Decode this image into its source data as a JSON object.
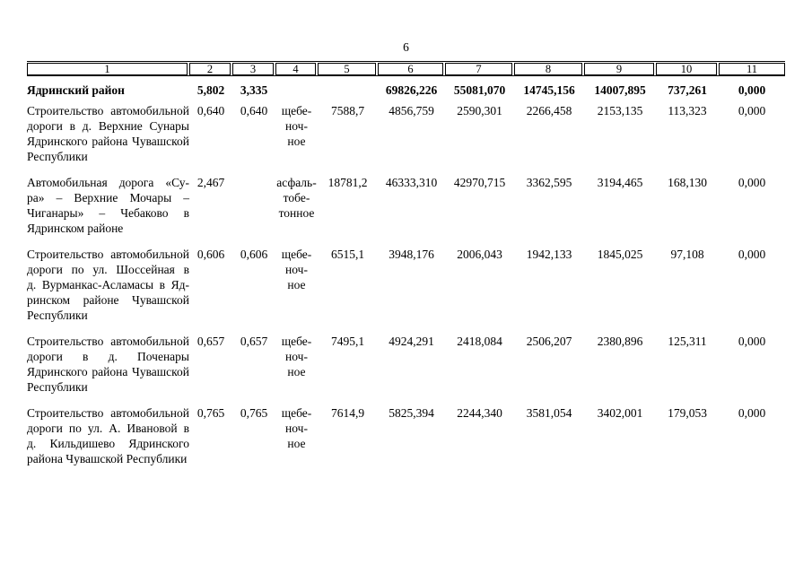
{
  "page_number": "6",
  "table": {
    "column_numbers": [
      "1",
      "2",
      "3",
      "4",
      "5",
      "6",
      "7",
      "8",
      "9",
      "10",
      "11"
    ],
    "total_row": {
      "title": "Ядринский район",
      "c2": "5,802",
      "c3": "3,335",
      "c4": "",
      "c5": "",
      "c6": "69826,226",
      "c7": "55081,070",
      "c8": "14745,156",
      "c9": "14007,895",
      "c10": "737,261",
      "c11": "0,000"
    },
    "rows": [
      {
        "desc": [
          "Строительство автомобильной",
          "дороги в д. Верхние Сунары",
          "Ядринского района Чувашской",
          "Республики"
        ],
        "c2": "0,640",
        "c3": "0,640",
        "c4": [
          "щебе-",
          "ноч-",
          "ное"
        ],
        "c5": "7588,7",
        "c6": "4856,759",
        "c7": "2590,301",
        "c8": "2266,458",
        "c9": "2153,135",
        "c10": "113,323",
        "c11": "0,000"
      },
      {
        "desc": [
          "Автомобильная дорога «Су-",
          "ра» – Верхние Мочары –",
          "Чиганары» – Чебаково в",
          "Ядринском районе"
        ],
        "c2": "2,467",
        "c3": "",
        "c4": [
          "асфаль-",
          "тобе-",
          "тонное"
        ],
        "c5": "18781,2",
        "c6": "46333,310",
        "c7": "42970,715",
        "c8": "3362,595",
        "c9": "3194,465",
        "c10": "168,130",
        "c11": "0,000"
      },
      {
        "desc": [
          "Строительство автомобильной",
          "дороги по ул. Шоссейная в",
          "д. Вурманкас-Асламасы в Яд-",
          "ринском районе Чувашской",
          "Республики"
        ],
        "c2": "0,606",
        "c3": "0,606",
        "c4": [
          "щебе-",
          "ноч-",
          "ное"
        ],
        "c5": "6515,1",
        "c6": "3948,176",
        "c7": "2006,043",
        "c8": "1942,133",
        "c9": "1845,025",
        "c10": "97,108",
        "c11": "0,000"
      },
      {
        "desc": [
          "Строительство автомобильной",
          "дороги в д. Поченары",
          "Ядринского района Чувашской",
          "Республики"
        ],
        "c2": "0,657",
        "c3": "0,657",
        "c4": [
          "щебе-",
          "ноч-",
          "ное"
        ],
        "c5": "7495,1",
        "c6": "4924,291",
        "c7": "2418,084",
        "c8": "2506,207",
        "c9": "2380,896",
        "c10": "125,311",
        "c11": "0,000"
      },
      {
        "desc": [
          "Строительство автомобильной",
          "дороги по ул. А. Ивановой в",
          "д. Кильдишево Ядринского",
          "района Чувашской Республики"
        ],
        "c2": "0,765",
        "c3": "0,765",
        "c4": [
          "щебе-",
          "ноч-",
          "ное"
        ],
        "c5": "7614,9",
        "c6": "5825,394",
        "c7": "2244,340",
        "c8": "3581,054",
        "c9": "3402,001",
        "c10": "179,053",
        "c11": "0,000"
      }
    ]
  }
}
